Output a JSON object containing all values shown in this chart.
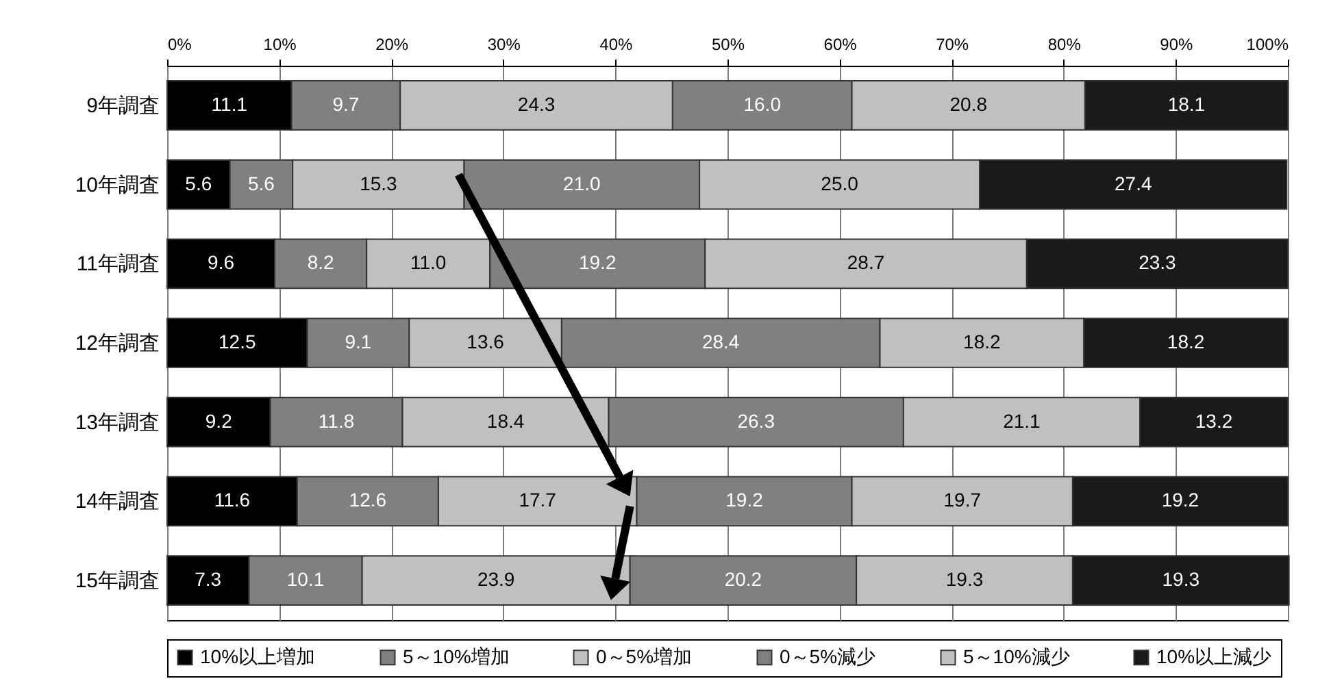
{
  "chart_data": {
    "type": "bar",
    "orientation": "horizontal",
    "stacked": true,
    "grid": "x",
    "legend": "bottom",
    "categories": [
      "9年調査",
      "10年調査",
      "11年調査",
      "12年調査",
      "13年調査",
      "14年調査",
      "15年調査"
    ],
    "xlim": [
      0,
      100
    ],
    "xticks": [
      {
        "value": 0,
        "label": "0%"
      },
      {
        "value": 10,
        "label": "10%"
      },
      {
        "value": 20,
        "label": "20%"
      },
      {
        "value": 30,
        "label": "30%"
      },
      {
        "value": 40,
        "label": "40%"
      },
      {
        "value": 50,
        "label": "50%"
      },
      {
        "value": 60,
        "label": "60%"
      },
      {
        "value": 70,
        "label": "70%"
      },
      {
        "value": 80,
        "label": "80%"
      },
      {
        "value": 90,
        "label": "90%"
      },
      {
        "value": 100,
        "label": "100%"
      }
    ],
    "series": [
      {
        "name": "10%以上増加",
        "color": "#000000",
        "values": [
          11.1,
          5.6,
          9.6,
          12.5,
          9.2,
          11.6,
          7.3
        ],
        "value_labels": [
          "11.1",
          "5.6",
          "9.6",
          "12.5",
          "9.2",
          "11.6",
          "7.3"
        ]
      },
      {
        "name": "5～10%増加",
        "color": "#808080",
        "values": [
          9.7,
          5.6,
          8.2,
          9.1,
          11.8,
          12.6,
          10.1
        ],
        "value_labels": [
          "9.7",
          "5.6",
          "8.2",
          "9.1",
          "11.8",
          "12.6",
          "10.1"
        ]
      },
      {
        "name": "0～5%増加",
        "color": "#c0c0c0",
        "values": [
          24.3,
          15.3,
          11.0,
          13.6,
          18.4,
          17.7,
          23.9
        ],
        "value_labels": [
          "24.3",
          "15.3",
          "11.0",
          "13.6",
          "18.4",
          "17.7",
          "23.9"
        ]
      },
      {
        "name": "0～5%減少",
        "color": "#808080",
        "values": [
          16.0,
          21.0,
          19.2,
          28.4,
          26.3,
          19.2,
          20.2
        ],
        "value_labels": [
          "16.0",
          "21.0",
          "19.2",
          "28.4",
          "26.3",
          "19.2",
          "20.2"
        ]
      },
      {
        "name": "5～10%減少",
        "color": "#c0c0c0",
        "values": [
          20.8,
          25.0,
          28.7,
          18.2,
          21.1,
          19.7,
          19.3
        ],
        "value_labels": [
          "20.8",
          "25.0",
          "28.7",
          "18.2",
          "21.1",
          "19.7",
          "19.3"
        ]
      },
      {
        "name": "10%以上減少",
        "color": "#1a1a1a",
        "values": [
          18.1,
          27.4,
          23.3,
          18.2,
          13.2,
          19.2,
          19.3
        ],
        "value_labels": [
          "18.1",
          "27.4",
          "23.3",
          "18.2",
          "13.2",
          "19.2",
          "19.3"
        ]
      }
    ]
  }
}
